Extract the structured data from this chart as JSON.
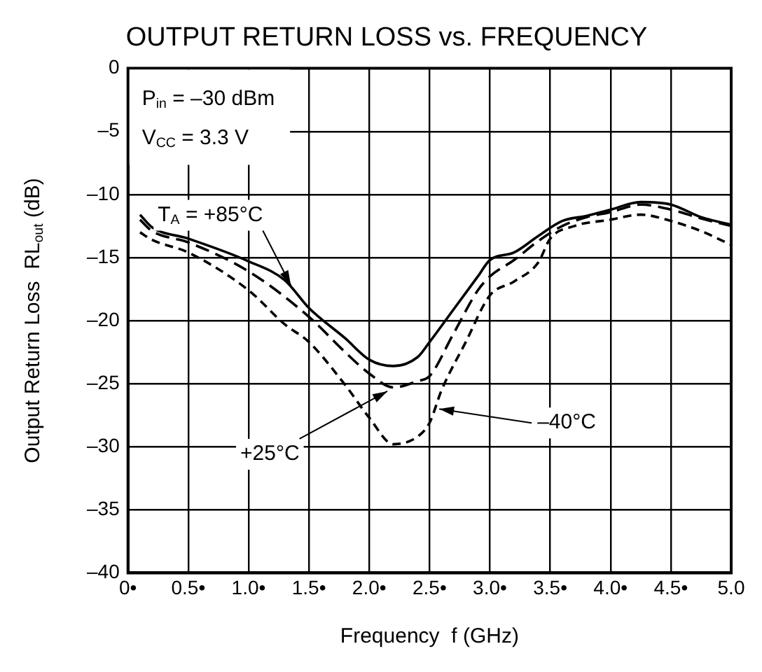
{
  "chart_data": {
    "type": "line",
    "title": "OUTPUT RETURN LOSS vs. FREQUENCY",
    "xlabel": "Frequency  f (GHz)",
    "ylabel": "Output Return Loss  RL$_{out}$ (dB)",
    "xlim": [
      0,
      5
    ],
    "xticks": [
      {
        "value": 0,
        "label": "0•"
      },
      {
        "value": 0.5,
        "label": "0.5•"
      },
      {
        "value": 1,
        "label": "1.0•"
      },
      {
        "value": 1.5,
        "label": "1.5•"
      },
      {
        "value": 2,
        "label": "2.0•"
      },
      {
        "value": 2.5,
        "label": "2.5•"
      },
      {
        "value": 3,
        "label": "3.0•"
      },
      {
        "value": 3.5,
        "label": "3.5•"
      },
      {
        "value": 4,
        "label": "4.0•"
      },
      {
        "value": 4.5,
        "label": "4.5•"
      },
      {
        "value": 5,
        "label": "5.0"
      }
    ],
    "ylim": [
      -40,
      0
    ],
    "yticks": [
      {
        "value": -40,
        "label": "–40"
      },
      {
        "value": -35,
        "label": "–35"
      },
      {
        "value": -30,
        "label": "–30"
      },
      {
        "value": -25,
        "label": "–25"
      },
      {
        "value": -20,
        "label": "–20"
      },
      {
        "value": -15,
        "label": "–15"
      },
      {
        "value": -10,
        "label": "–10"
      },
      {
        "value": -5,
        "label": "–5"
      },
      0
    ],
    "grid": true,
    "legend": false,
    "marker": "none",
    "series": [
      {
        "color": "#000000",
        "line_style": "solid",
        "x": [
          0.1,
          0.2,
          0.5,
          1.0,
          1.3,
          1.5,
          1.8,
          2.0,
          2.2,
          2.4,
          2.5,
          2.7,
          2.9,
          3.0,
          3.2,
          3.4,
          3.6,
          3.8,
          4.0,
          4.25,
          4.5,
          4.75,
          5.0
        ],
        "values": [
          -11.6,
          -12.6,
          -13.5,
          -15.3,
          -16.8,
          -19.0,
          -21.4,
          -23.1,
          -23.6,
          -22.9,
          -21.7,
          -19.1,
          -16.5,
          -15.2,
          -14.6,
          -13.3,
          -12.1,
          -11.7,
          -11.2,
          -10.6,
          -10.8,
          -11.8,
          -12.4
        ]
      },
      {
        "color": "#000000",
        "line_style": "dashed",
        "x": [
          0.1,
          0.2,
          0.5,
          1.0,
          1.5,
          1.8,
          2.0,
          2.2,
          2.4,
          2.5,
          2.7,
          2.9,
          3.0,
          3.2,
          3.4,
          3.6,
          3.8,
          4.0,
          4.25,
          4.5,
          4.75,
          5.0
        ],
        "values": [
          -12.0,
          -12.9,
          -13.8,
          -16.1,
          -19.7,
          -22.5,
          -24.2,
          -25.3,
          -24.8,
          -24.4,
          -21.0,
          -17.6,
          -16.5,
          -15.2,
          -13.7,
          -12.5,
          -11.8,
          -11.4,
          -10.8,
          -11.2,
          -11.9,
          -12.5
        ]
      },
      {
        "color": "#000000",
        "line_style": "dashed",
        "x": [
          0.1,
          0.2,
          0.5,
          1.0,
          1.3,
          1.5,
          1.8,
          2.0,
          2.2,
          2.4,
          2.5,
          2.6,
          2.8,
          3.0,
          3.2,
          3.4,
          3.5,
          3.7,
          4.0,
          4.25,
          4.5,
          4.75,
          5.0
        ],
        "values": [
          -13.0,
          -13.6,
          -14.6,
          -17.6,
          -20.3,
          -21.7,
          -25.1,
          -27.7,
          -29.8,
          -29.2,
          -28.1,
          -25.5,
          -21.7,
          -18.0,
          -16.9,
          -15.4,
          -13.5,
          -12.5,
          -12.0,
          -11.6,
          -12.1,
          -12.9,
          -14.0
        ]
      }
    ],
    "annotations": [
      "P$_{in}$ = –30 dBm",
      "V$_{CC}$ = 3.3 V",
      {
        "text": "T$_{A}$ = +85°C",
        "x": 1.35,
        "y": -17.2
      },
      {
        "text": "+25°C",
        "x": 2.15,
        "y": -25.6
      },
      {
        "text": "–40°C",
        "x": 2.58,
        "y": -27.0
      }
    ]
  }
}
